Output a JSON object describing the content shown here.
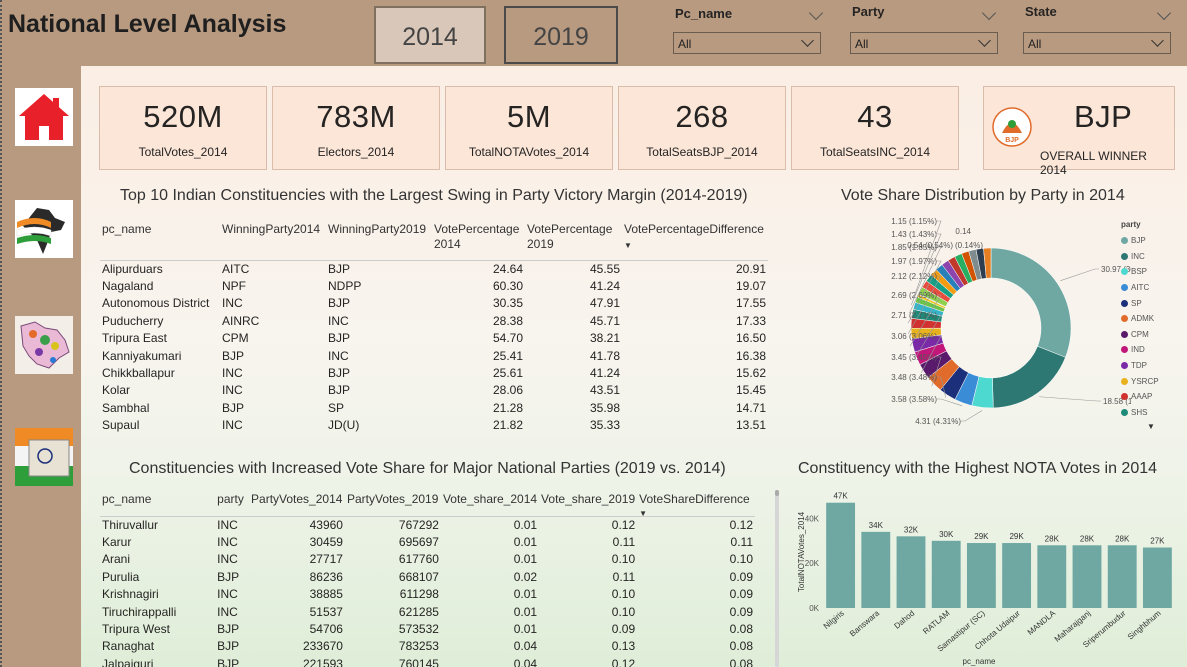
{
  "header": {
    "title": "National Level Analysis",
    "year_buttons": [
      "2014",
      "2019"
    ],
    "slicers": [
      {
        "label": "Pc_name",
        "value": "All"
      },
      {
        "label": "Party",
        "value": "All"
      },
      {
        "label": "State",
        "value": "All"
      }
    ]
  },
  "sidebar": {
    "icons": [
      "home-icon",
      "india-flag-map-icon",
      "state-map-icon",
      "constitution-flag-icon"
    ]
  },
  "cards": [
    {
      "value": "520M",
      "caption": "TotalVotes_2014"
    },
    {
      "value": "783M",
      "caption": "Electors_2014"
    },
    {
      "value": "5M",
      "caption": "TotalNOTAVotes_2014"
    },
    {
      "value": "268",
      "caption": "TotalSeatsBJP_2014"
    },
    {
      "value": "43",
      "caption": "TotalSeatsINC_2014"
    },
    {
      "value": "BJP",
      "caption": "OVERALL WINNER 2014",
      "logo_text": "BJP"
    }
  ],
  "swing_table": {
    "title": "Top 10 Indian Constituencies with the Largest Swing in Party Victory Margin (2014-2019)",
    "headers": [
      "pc_name",
      "WinningParty2014",
      "WinningParty2019",
      "VotePercentage 2014",
      "VotePercentage 2019",
      "VotePercentageDifference"
    ],
    "rows": [
      [
        "Alipurduars",
        "AITC",
        "BJP",
        "24.64",
        "45.55",
        "20.91"
      ],
      [
        "Nagaland",
        "NPF",
        "NDPP",
        "60.30",
        "41.24",
        "19.07"
      ],
      [
        "Autonomous District",
        "INC",
        "BJP",
        "30.35",
        "47.91",
        "17.55"
      ],
      [
        "Puducherry",
        "AINRC",
        "INC",
        "28.38",
        "45.71",
        "17.33"
      ],
      [
        "Tripura East",
        "CPM",
        "BJP",
        "54.70",
        "38.21",
        "16.50"
      ],
      [
        "Kanniyakumari",
        "BJP",
        "INC",
        "25.41",
        "41.78",
        "16.38"
      ],
      [
        "Chikkballapur",
        "INC",
        "BJP",
        "25.61",
        "41.24",
        "15.62"
      ],
      [
        "Kolar",
        "INC",
        "BJP",
        "28.06",
        "43.51",
        "15.45"
      ],
      [
        "Sambhal",
        "BJP",
        "SP",
        "21.28",
        "35.98",
        "14.71"
      ],
      [
        "Supaul",
        "INC",
        "JD(U)",
        "21.82",
        "35.33",
        "13.51"
      ]
    ]
  },
  "share_table": {
    "title": "Constituencies with Increased Vote Share for Major National Parties (2019 vs. 2014)",
    "headers": [
      "pc_name",
      "party",
      "PartyVotes_2014",
      "PartyVotes_2019",
      "Vote_share_2014",
      "Vote_share_2019",
      "VoteShareDifference"
    ],
    "rows": [
      [
        "Thiruvallur",
        "INC",
        "43960",
        "767292",
        "0.01",
        "0.12",
        "0.12"
      ],
      [
        "Karur",
        "INC",
        "30459",
        "695697",
        "0.01",
        "0.11",
        "0.11"
      ],
      [
        "Arani",
        "INC",
        "27717",
        "617760",
        "0.01",
        "0.10",
        "0.10"
      ],
      [
        "Purulia",
        "BJP",
        "86236",
        "668107",
        "0.02",
        "0.11",
        "0.09"
      ],
      [
        "Krishnagiri",
        "INC",
        "38885",
        "611298",
        "0.01",
        "0.10",
        "0.09"
      ],
      [
        "Tiruchirappalli",
        "INC",
        "51537",
        "621285",
        "0.01",
        "0.10",
        "0.09"
      ],
      [
        "Tripura West",
        "BJP",
        "54706",
        "573532",
        "0.01",
        "0.09",
        "0.08"
      ],
      [
        "Ranaghat",
        "BJP",
        "233670",
        "783253",
        "0.04",
        "0.13",
        "0.08"
      ],
      [
        "Jalpaiguri",
        "BJP",
        "221593",
        "760145",
        "0.04",
        "0.12",
        "0.08"
      ]
    ]
  },
  "chart_data": [
    {
      "type": "pie",
      "title": "Vote Share Distribution by Party in 2014",
      "legend_title": "party",
      "legend_position": "right",
      "legend": [
        "BJP",
        "INC",
        "BSP",
        "AITC",
        "SP",
        "ADMK",
        "CPM",
        "IND",
        "TDP",
        "YSRCP",
        "AAAP",
        "SHS"
      ],
      "slices": [
        30.97,
        18.58,
        4.31,
        3.58,
        3.48,
        3.45,
        3.06,
        2.71,
        2.69,
        2.12,
        1.97,
        1.85,
        1.43,
        1.15,
        0.54,
        0.14
      ],
      "slice_labels": [
        "30.97 (30.97%)",
        "18.58 (18.58%)",
        "4.31 (4.31%)",
        "3.58 (3.58%)",
        "3.48 (3.48%)",
        "3.45 (3.45%)",
        "3.06 (3.06%)",
        "2.71 (2.71%)",
        "2.69 (2.69%)",
        "2.12 (2.12%)",
        "1.97 (1.97%)",
        "1.85 (1.85%)",
        "1.43 (1.43%)",
        "1.15 (1.15%)",
        "0.54 (0.54%)",
        "(0.14%)"
      ],
      "top_label": "0.14",
      "colors": [
        "#6fa8a3",
        "#2e7873",
        "#4dd9cf",
        "#3b8cd6",
        "#1b2f7a",
        "#e06b2a",
        "#5a1a6b",
        "#c2177a",
        "#7a2aa6",
        "#e8b21e",
        "#d1312f",
        "#1e8a7a",
        "#35b4c9",
        "#6cc24a",
        "#f0c419",
        "#9b59b6"
      ]
    },
    {
      "type": "bar",
      "title": "Constituency with the Highest NOTA Votes in 2014",
      "xlabel": "pc_name",
      "ylabel": "TotalNOTAVotes_2014",
      "categories": [
        "Nilgiris",
        "Banswara",
        "Dahod",
        "RATLAM",
        "Samastipur (SC)",
        "Chhota Udaipur",
        "MANDLA",
        "Maharajganj",
        "Sriperumbudur",
        "Singhbhum"
      ],
      "values": [
        47,
        34,
        32,
        30,
        29,
        29,
        28,
        28,
        28,
        27
      ],
      "data_labels": [
        "47K",
        "34K",
        "32K",
        "30K",
        "29K",
        "29K",
        "28K",
        "28K",
        "28K",
        "27K"
      ],
      "yticks": [
        "0K",
        "20K",
        "40K"
      ],
      "ylim": [
        0,
        50
      ],
      "color": "#6fa8a3"
    }
  ]
}
